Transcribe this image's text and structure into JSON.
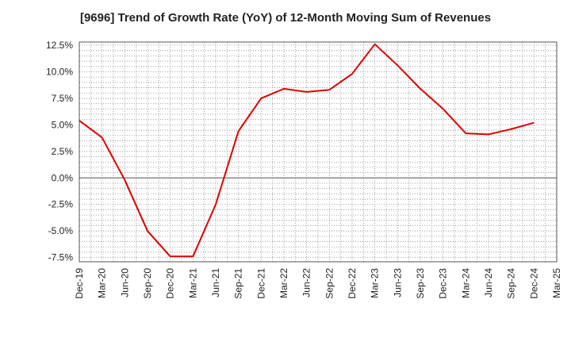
{
  "chart_data": {
    "type": "line",
    "title": "[9696]  Trend of Growth Rate (YoY) of 12-Month Moving Sum of Revenues",
    "xlabel": "",
    "ylabel": "",
    "x_tick_labels": [
      "Dec-19",
      "Mar-20",
      "Jun-20",
      "Sep-20",
      "Dec-20",
      "Mar-21",
      "Jun-21",
      "Sep-21",
      "Dec-21",
      "Mar-22",
      "Jun-22",
      "Sep-22",
      "Dec-22",
      "Mar-23",
      "Jun-23",
      "Sep-23",
      "Dec-23",
      "Mar-24",
      "Jun-24",
      "Sep-24",
      "Dec-24",
      "Mar-25"
    ],
    "y_tick_labels": [
      "12.5%",
      "10.0%",
      "7.5%",
      "5.0%",
      "2.5%",
      "0.0%",
      "-2.5%",
      "-5.0%",
      "-7.5%"
    ],
    "y_ticks": [
      12.5,
      10.0,
      7.5,
      5.0,
      2.5,
      0.0,
      -2.5,
      -5.0,
      -7.5
    ],
    "ylim": [
      -7.9,
      12.8
    ],
    "grid": true,
    "line_color": "#e00000",
    "series": [
      {
        "x": [
          "Dec-19",
          "Mar-20",
          "Jun-20",
          "Sep-20",
          "Dec-20",
          "Mar-21",
          "Jun-21",
          "Sep-21",
          "Dec-21",
          "Mar-22",
          "Jun-22",
          "Sep-22",
          "Dec-22",
          "Mar-23",
          "Jun-23",
          "Sep-23",
          "Dec-23",
          "Mar-24",
          "Jun-24",
          "Sep-24",
          "Dec-24"
        ],
        "values": [
          5.4,
          3.8,
          -0.2,
          -5.0,
          -7.4,
          -7.4,
          -2.5,
          4.4,
          7.5,
          8.4,
          8.1,
          8.3,
          9.8,
          12.6,
          10.6,
          8.4,
          6.5,
          4.2,
          4.1,
          4.6,
          5.2
        ]
      }
    ]
  }
}
